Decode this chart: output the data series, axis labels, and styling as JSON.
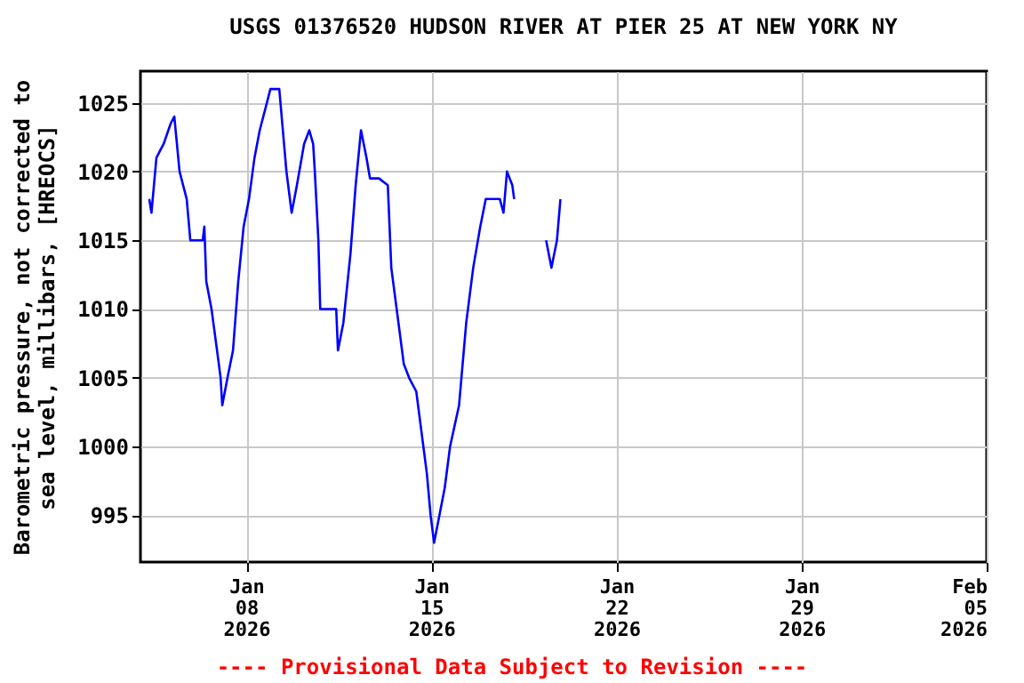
{
  "chart_data": {
    "type": "line",
    "title": "USGS 01376520 HUDSON RIVER AT PIER 25 AT NEW YORK NY",
    "ylabel": "Barometric pressure, not corrected to\nsea level, millibars, [HREOCS]",
    "annotations": [
      "---- Provisional Data Subject to Revision ----"
    ],
    "x": [
      "2026-01-04T08:00",
      "2026-01-04T10:00",
      "2026-01-04T14:30",
      "2026-01-04T21:00",
      "2026-01-05T03:30",
      "2026-01-05T06:45",
      "2026-01-05T11:30",
      "2026-01-05T18:00",
      "2026-01-05T21:15",
      "2026-01-06T08:30",
      "2026-01-06T10:00",
      "2026-01-06T11:45",
      "2026-01-06T16:30",
      "2026-01-06T21:30",
      "2026-01-07T00:45",
      "2026-01-07T02:15",
      "2026-01-07T07:00",
      "2026-01-07T12:00",
      "2026-01-07T16:45",
      "2026-01-07T21:40",
      "2026-01-08T02:30",
      "2026-01-08T07:30",
      "2026-01-08T12:15",
      "2026-01-08T18:45",
      "2026-01-08T21:55",
      "2026-01-09T06:00",
      "2026-01-09T09:15",
      "2026-01-09T12:30",
      "2026-01-09T17:15",
      "2026-01-09T22:00",
      "2026-01-10T04:30",
      "2026-01-10T09:15",
      "2026-01-10T12:45",
      "2026-01-10T14:15",
      "2026-01-10T17:30",
      "2026-01-10T19:10",
      "2026-01-11T09:40",
      "2026-01-11T11:15",
      "2026-01-11T16:10",
      "2026-01-11T22:35",
      "2026-01-12T03:20",
      "2026-01-12T08:10",
      "2026-01-12T13:10",
      "2026-01-12T16:20",
      "2026-01-13T00:30",
      "2026-01-13T08:30",
      "2026-01-13T11:40",
      "2026-01-13T18:10",
      "2026-01-13T23:00",
      "2026-01-14T03:50",
      "2026-01-14T10:20",
      "2026-01-14T15:10",
      "2026-01-14T20:00",
      "2026-01-14T23:20",
      "2026-01-15T02:30",
      "2026-01-15T07:20",
      "2026-01-15T12:10",
      "2026-01-15T17:00",
      "2026-01-16T01:10",
      "2026-01-16T07:40",
      "2026-01-16T14:00",
      "2026-01-16T20:25",
      "2026-01-17T01:25",
      "2026-01-17T14:10",
      "2026-01-17T17:30",
      "2026-01-17T20:40",
      "2026-01-18T01:30",
      "2026-01-18T03:10",
      "2026-01-18T18:00",
      "2026-01-19T08:10",
      "2026-01-19T13:00",
      "2026-01-19T18:00",
      "2026-01-19T21:10"
    ],
    "series": [
      {
        "color": "#0000ff",
        "values": [
          1018,
          1017,
          1021,
          1022,
          1023.5,
          1024,
          1020,
          1018,
          1015,
          1015,
          1016,
          1012,
          1010,
          1007,
          1005,
          1003,
          1005,
          1007,
          1012,
          1016,
          1018,
          1021,
          1023,
          1025,
          1026,
          1026,
          1023,
          1020,
          1017,
          1019,
          1022,
          1023,
          1022,
          1020,
          1015,
          1010,
          1010,
          1007,
          1009,
          1014,
          1019,
          1023,
          1021,
          1019.5,
          1019.5,
          1019,
          1013,
          1009,
          1006,
          1005,
          1004,
          1001,
          998,
          995,
          993,
          995,
          997,
          1000,
          1003,
          1009,
          1013,
          1016,
          1018,
          1018,
          1017,
          1020,
          1019,
          1018,
          null,
          1015,
          1013,
          1015,
          1018
        ]
      }
    ],
    "xlim": [
      "2026-01-04",
      "2026-02-05"
    ],
    "xticks": [
      {
        "value": "2026-01-08",
        "label": "Jan 08 2026"
      },
      {
        "value": "2026-01-15",
        "label": "Jan 15 2026"
      },
      {
        "value": "2026-01-22",
        "label": "Jan 22 2026"
      },
      {
        "value": "2026-01-29",
        "label": "Jan 29 2026"
      },
      {
        "value": "2026-02-05",
        "label": "Feb 05 2026"
      }
    ],
    "ylim": [
      991.6,
      1027.3
    ],
    "yticks": [
      995,
      1000,
      1005,
      1010,
      1015,
      1020,
      1025
    ],
    "grid": true,
    "marker": "none",
    "line_style": "solid"
  }
}
